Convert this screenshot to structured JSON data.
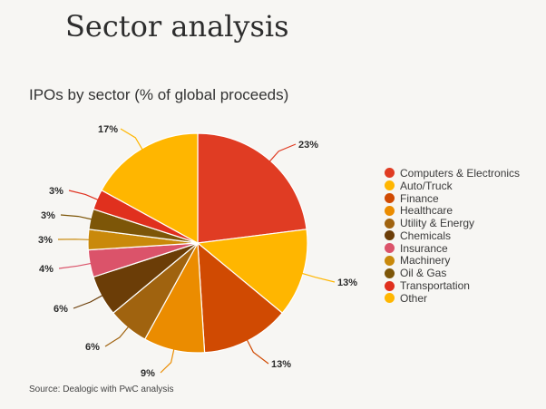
{
  "page": {
    "title": "Sector analysis"
  },
  "chart_data": {
    "type": "pie",
    "title": "IPOs by sector (% of global proceeds)",
    "categories": [
      "Computers & Electronics",
      "Auto/Truck",
      "Finance",
      "Healthcare",
      "Utility & Energy",
      "Chemicals",
      "Insurance",
      "Machinery",
      "Oil & Gas",
      "Transportation",
      "Other"
    ],
    "values": [
      23,
      13,
      13,
      9,
      6,
      6,
      4,
      3,
      3,
      3,
      17
    ],
    "value_labels": [
      "23%",
      "13%",
      "13%",
      "9%",
      "6%",
      "6%",
      "4%",
      "3%",
      "3%",
      "3%",
      "17%"
    ],
    "colors": [
      "#e03c23",
      "#ffb600",
      "#d04a02",
      "#eb8c00",
      "#a0630f",
      "#6b3d07",
      "#db536a",
      "#c9890b",
      "#7d5608",
      "#e0301e",
      "#ffb600"
    ],
    "legend_position": "right",
    "source": "Source: Dealogic with PwC analysis"
  }
}
